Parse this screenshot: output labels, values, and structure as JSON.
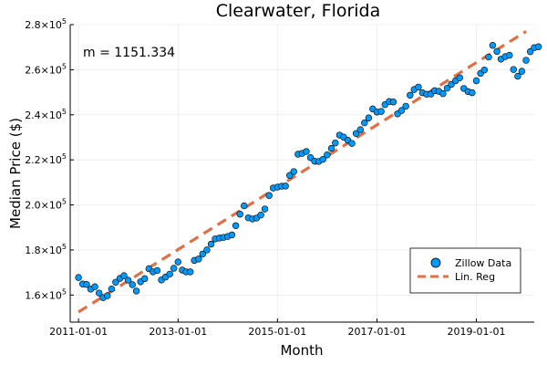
{
  "chart_data": {
    "type": "scatter",
    "title": "Clearwater, Florida",
    "xlabel": "Month",
    "ylabel": "Median Price ($)",
    "annotation": "m = 1151.334",
    "xlim": [
      "2010-11-01",
      "2020-03-01"
    ],
    "ylim": [
      148000,
      280000
    ],
    "x_ticks": [
      "2011-01-01",
      "2013-01-01",
      "2015-01-01",
      "2017-01-01",
      "2019-01-01"
    ],
    "y_ticks": [
      {
        "value": 160000,
        "base": "1.6×10",
        "exp": "5"
      },
      {
        "value": 180000,
        "base": "1.8×10",
        "exp": "5"
      },
      {
        "value": 200000,
        "base": "2.0×10",
        "exp": "5"
      },
      {
        "value": 220000,
        "base": "2.2×10",
        "exp": "5"
      },
      {
        "value": 240000,
        "base": "2.4×10",
        "exp": "5"
      },
      {
        "value": 260000,
        "base": "2.6×10",
        "exp": "5"
      },
      {
        "value": 280000,
        "base": "2.8×10",
        "exp": "5"
      }
    ],
    "grid": true,
    "legend_position": "bottom-right",
    "start_month": "2011-01",
    "series": [
      {
        "name": "Zillow Data",
        "type": "scatter",
        "color": "#009AFA",
        "values": [
          167800,
          164900,
          164700,
          162600,
          163700,
          160900,
          158900,
          159700,
          162700,
          165700,
          167400,
          168600,
          166600,
          164600,
          161800,
          165900,
          167300,
          171700,
          170300,
          170900,
          166700,
          168000,
          169300,
          171900,
          174700,
          171100,
          170300,
          170300,
          175400,
          176000,
          178200,
          180000,
          182600,
          184900,
          185300,
          185600,
          186000,
          186700,
          190800,
          195900,
          199600,
          194300,
          193800,
          194200,
          195500,
          198200,
          204200,
          207500,
          207900,
          208300,
          208400,
          213100,
          214800,
          222500,
          222900,
          223700,
          221000,
          219400,
          219300,
          220200,
          222200,
          225100,
          227500,
          231000,
          230100,
          228700,
          227300,
          231700,
          233400,
          236400,
          238600,
          242600,
          241200,
          241500,
          244500,
          245900,
          245700,
          240400,
          241900,
          243800,
          248700,
          251200,
          252300,
          249800,
          249100,
          249200,
          250700,
          250400,
          249400,
          251800,
          253500,
          255100,
          256400,
          251700,
          250300,
          249800,
          255100,
          258400,
          259900,
          265600,
          270800,
          268100,
          264700,
          265800,
          266400,
          260100,
          257100,
          259300,
          264200,
          268000,
          269800,
          270200
        ]
      },
      {
        "name": "Lin. Reg",
        "type": "line",
        "style": "dashed",
        "color": "#E26F46",
        "x": [
          "2011-01",
          "2020-01"
        ],
        "values": [
          152500,
          277000
        ]
      }
    ]
  }
}
